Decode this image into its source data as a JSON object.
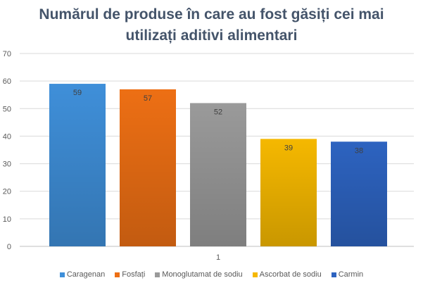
{
  "chart_data": {
    "type": "bar",
    "title_lines": [
      "Numărul de produse în care au fost găsiți cei mai",
      "utilizați aditivi alimentari"
    ],
    "categories": [
      "1"
    ],
    "ylim": [
      0,
      70
    ],
    "yticks": [
      0,
      10,
      20,
      30,
      40,
      50,
      60,
      70
    ],
    "grid": true,
    "legend_position": "bottom",
    "series": [
      {
        "name": "Caragenan",
        "values": [
          59
        ],
        "color": "#3f8fd9"
      },
      {
        "name": "Fosfați",
        "values": [
          57
        ],
        "color": "#ed6f14"
      },
      {
        "name": "Monoglutamat de sodiu",
        "values": [
          52
        ],
        "color": "#9a9a9a"
      },
      {
        "name": "Ascorbat de sodiu",
        "values": [
          39
        ],
        "color": "#f5b800"
      },
      {
        "name": "Carmin",
        "values": [
          38
        ],
        "color": "#2d63c0"
      }
    ]
  }
}
